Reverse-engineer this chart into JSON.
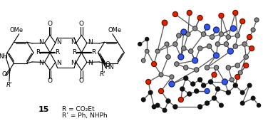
{
  "figure_width": 3.69,
  "figure_height": 1.7,
  "dpi": 100,
  "background_color": "#ffffff",
  "label": "15",
  "annot1": "R = CO₂Et",
  "annot2": "R’ = Ph, NHPh",
  "label_fontsize": 8,
  "annot_fontsize": 6.5
}
